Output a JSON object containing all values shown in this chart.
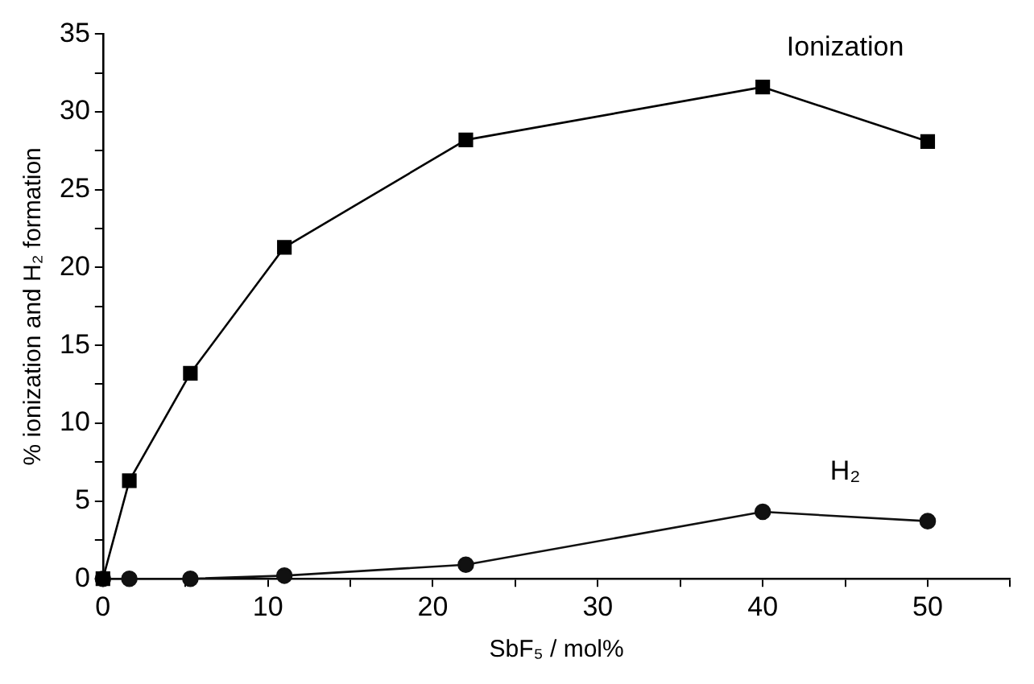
{
  "chart_data": {
    "type": "line",
    "xlabel": "SbF₅ / mol%",
    "ylabel": "% ionization and H₂ formation",
    "x": [
      0,
      1.6,
      5.3,
      11,
      22,
      40,
      50
    ],
    "series": [
      {
        "name": "Ionization",
        "color": "#000000",
        "marker": "square",
        "values": [
          0,
          6.3,
          13.2,
          21.3,
          28.2,
          31.6,
          28.1
        ]
      },
      {
        "name": "H₂",
        "color": "#111111",
        "marker": "circle",
        "values": [
          0,
          0,
          0,
          0.2,
          0.9,
          4.3,
          3.7
        ]
      }
    ],
    "xlim": [
      0,
      55
    ],
    "xticks": [
      0,
      {
        "value": 5,
        "label": null
      },
      10,
      {
        "value": 15,
        "label": null
      },
      20,
      {
        "value": 25,
        "label": null
      },
      30,
      {
        "value": 35,
        "label": null
      },
      40,
      {
        "value": 45,
        "label": null
      },
      50,
      {
        "value": 55,
        "label": null
      }
    ],
    "ylim": [
      0,
      35
    ],
    "yticks": [
      0,
      {
        "value": 2.5,
        "label": null
      },
      5,
      {
        "value": 7.5,
        "label": null
      },
      10,
      {
        "value": 12.5,
        "label": null
      },
      15,
      {
        "value": 17.5,
        "label": null
      },
      20,
      {
        "value": 22.5,
        "label": null
      },
      25,
      {
        "value": 27.5,
        "label": null
      },
      30,
      {
        "value": 32.5,
        "label": null
      },
      35
    ],
    "grid": false,
    "legend": false,
    "line_style": "solid"
  }
}
